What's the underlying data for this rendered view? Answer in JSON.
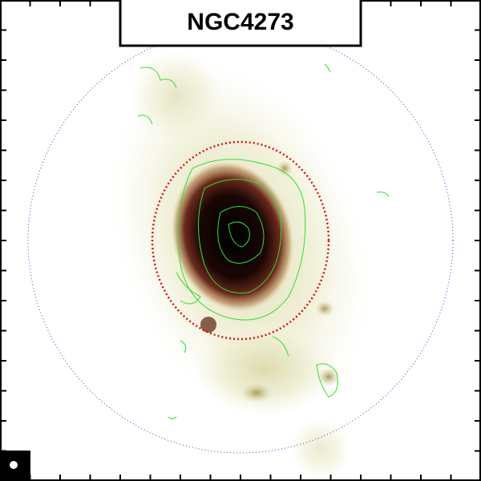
{
  "title": "NGC4273"
}
